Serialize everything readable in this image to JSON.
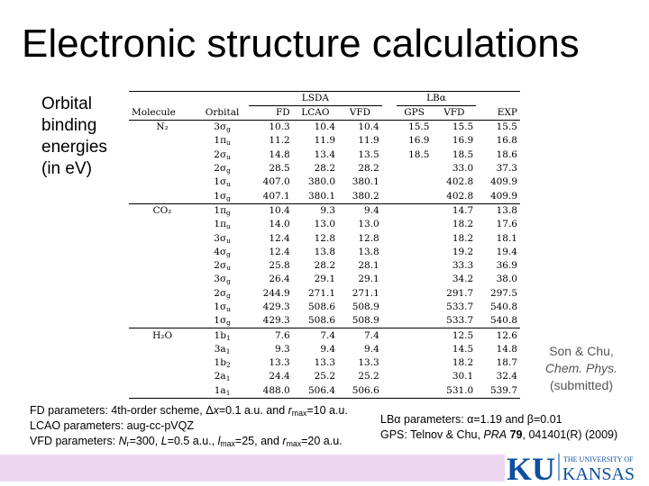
{
  "title": "Electronic structure calculations",
  "sidebar": [
    "Orbital",
    "binding",
    "energies",
    "(in eV)"
  ],
  "table": {
    "group_headers": {
      "lsda": "LSDA",
      "lb": "LBα"
    },
    "columns": [
      "Molecule",
      "Orbital",
      "FD",
      "LCAO",
      "VFD",
      "GPS",
      "VFD",
      "EXP"
    ],
    "groups": [
      {
        "molecule": "N₂",
        "rows": [
          [
            "3σg",
            "10.3",
            "10.4",
            "10.4",
            "15.5",
            "15.5",
            "15.5"
          ],
          [
            "1πu",
            "11.2",
            "11.9",
            "11.9",
            "16.9",
            "16.9",
            "16.8"
          ],
          [
            "2σu",
            "14.8",
            "13.4",
            "13.5",
            "18.5",
            "18.5",
            "18.6"
          ],
          [
            "2σg",
            "28.5",
            "28.2",
            "28.2",
            "",
            "33.0",
            "37.3"
          ],
          [
            "1σu",
            "407.0",
            "380.0",
            "380.1",
            "",
            "402.8",
            "409.9"
          ],
          [
            "1σg",
            "407.1",
            "380.1",
            "380.2",
            "",
            "402.8",
            "409.9"
          ]
        ]
      },
      {
        "molecule": "CO₂",
        "rows": [
          [
            "1πg",
            "10.4",
            "9.3",
            "9.4",
            "",
            "14.7",
            "13.8"
          ],
          [
            "1πu",
            "14.0",
            "13.0",
            "13.0",
            "",
            "18.2",
            "17.6"
          ],
          [
            "3σu",
            "12.4",
            "12.8",
            "12.8",
            "",
            "18.2",
            "18.1"
          ],
          [
            "4σg",
            "12.4",
            "13.8",
            "13.8",
            "",
            "19.2",
            "19.4"
          ],
          [
            "2σu",
            "25.8",
            "28.2",
            "28.1",
            "",
            "33.3",
            "36.9"
          ],
          [
            "3σg",
            "26.4",
            "29.1",
            "29.1",
            "",
            "34.2",
            "38.0"
          ],
          [
            "2σg",
            "244.9",
            "271.1",
            "271.1",
            "",
            "291.7",
            "297.5"
          ],
          [
            "1σu",
            "429.3",
            "508.6",
            "508.9",
            "",
            "533.7",
            "540.8"
          ],
          [
            "1σg",
            "429.3",
            "508.6",
            "508.9",
            "",
            "533.7",
            "540.8"
          ]
        ]
      },
      {
        "molecule": "H₂O",
        "rows": [
          [
            "1b1",
            "7.6",
            "7.4",
            "7.4",
            "",
            "12.5",
            "12.6"
          ],
          [
            "3a1",
            "9.3",
            "9.4",
            "9.4",
            "",
            "14.5",
            "14.8"
          ],
          [
            "1b2",
            "13.3",
            "13.3",
            "13.3",
            "",
            "18.2",
            "18.7"
          ],
          [
            "2a1",
            "24.4",
            "25.2",
            "25.2",
            "",
            "30.1",
            "32.4"
          ],
          [
            "1a1",
            "488.0",
            "506.4",
            "506.6",
            "",
            "531.0",
            "539.7"
          ]
        ]
      }
    ]
  },
  "citation": {
    "line1": "Son & Chu,",
    "journal": "Chem. Phys.",
    "line3": "(submitted)"
  },
  "params_left": [
    "FD parameters: 4th-order scheme, Δx=0.1 a.u. and rmax=10 a.u.",
    "LCAO parameters: aug-cc-pVQZ",
    "VFD parameters: Nr=300, L=0.5 a.u., lmax=25, and rmax=20 a.u."
  ],
  "params_right": [
    "LBα parameters: α=1.19 and β=0.01",
    "GPS: Telnov & Chu, PRA 79, 041401(R) (2009)"
  ],
  "logo": {
    "ku": "KU",
    "the_university_of": "THE UNIVERSITY OF",
    "kansas": "KANSAS"
  },
  "colors": {
    "band": "#ecd6f2",
    "logo_blue": "#0b4fa0",
    "citation": "#555555"
  }
}
